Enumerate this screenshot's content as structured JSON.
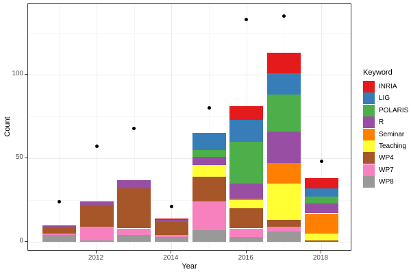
{
  "chart_data": {
    "type": "bar",
    "stacked": true,
    "title": "",
    "xlabel": "Year",
    "ylabel": "Count",
    "legend": {
      "title": "Keyword",
      "position": "right"
    },
    "categories": [
      2011,
      2012,
      2013,
      2014,
      2015,
      2016,
      2017,
      2018
    ],
    "x_major_ticks": [
      2012,
      2014,
      2016,
      2018
    ],
    "x_minor_gridlines": [
      2011,
      2013,
      2015,
      2017
    ],
    "y_major_ticks": [
      0,
      50,
      100
    ],
    "y_minor_gridlines": [
      25,
      75,
      125
    ],
    "xlim": [
      2010.17,
      2018.83
    ],
    "ylim": [
      -5.7,
      142.2
    ],
    "grid": true,
    "stack_order_bottom_to_top": [
      "WP8",
      "WP7",
      "WP4",
      "Teaching",
      "Seminar",
      "R",
      "POLARIS",
      "LIG",
      "INRIA"
    ],
    "series": [
      {
        "name": "INRIA",
        "color": "#E41A1C",
        "values": [
          0,
          0,
          0,
          1,
          0,
          8,
          12,
          6
        ]
      },
      {
        "name": "LIG",
        "color": "#377EB8",
        "values": [
          0,
          0,
          0,
          0,
          10,
          13,
          13,
          5
        ]
      },
      {
        "name": "POLARIS",
        "color": "#4DAF4A",
        "values": [
          0,
          0,
          0,
          0,
          4,
          25,
          22,
          4
        ]
      },
      {
        "name": "R",
        "color": "#984EA3",
        "values": [
          1,
          2,
          5,
          1,
          5,
          9,
          19,
          6
        ]
      },
      {
        "name": "Seminar",
        "color": "#FF7F00",
        "values": [
          0,
          0,
          0,
          0,
          0,
          1,
          12,
          12
        ]
      },
      {
        "name": "Teaching",
        "color": "#FFFF33",
        "values": [
          0,
          0,
          0,
          0,
          7,
          5,
          22,
          4
        ]
      },
      {
        "name": "WP4",
        "color": "#A65628",
        "values": [
          4,
          13,
          24,
          8,
          15,
          12,
          4,
          1
        ]
      },
      {
        "name": "WP7",
        "color": "#F781BF",
        "values": [
          1,
          8,
          4,
          1,
          17,
          5,
          3,
          0
        ]
      },
      {
        "name": "WP8",
        "color": "#999999",
        "values": [
          4,
          1,
          4,
          3,
          7,
          3,
          6,
          0
        ]
      }
    ],
    "bar_totals": [
      10,
      24,
      37,
      14,
      65,
      81,
      113,
      38
    ],
    "scatter_points": {
      "color": "#000000",
      "values": [
        24,
        57,
        68,
        21,
        80,
        133,
        135,
        48
      ]
    }
  },
  "style": {
    "panel_border": "#333333",
    "grid_major": "#ebebeb",
    "grid_minor": "#f6f6f6",
    "tick_label_color": "#4d4d4d",
    "axis_title_color": "#000000",
    "point_color": "#000000"
  }
}
